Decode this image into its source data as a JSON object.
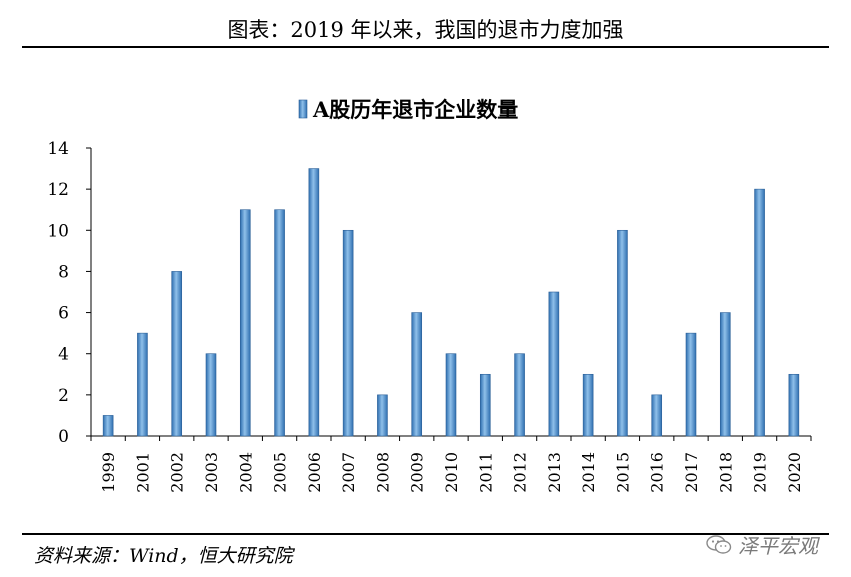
{
  "figure": {
    "title": "图表：2019 年以来，我国的退市力度加强",
    "source": "资料来源：Wind，恒大研究院",
    "watermark": "泽平宏观",
    "watermark_icon": "wechat-icon"
  },
  "chart_data": {
    "type": "bar",
    "title": "",
    "series": [
      {
        "name": "A股历年退市企业数量",
        "color": "#5b9bd5",
        "values": [
          1,
          5,
          8,
          4,
          11,
          11,
          13,
          10,
          2,
          6,
          4,
          3,
          4,
          7,
          3,
          10,
          2,
          5,
          6,
          12,
          3
        ]
      }
    ],
    "categories": [
      "1999",
      "2001",
      "2002",
      "2003",
      "2004",
      "2005",
      "2006",
      "2007",
      "2008",
      "2009",
      "2010",
      "2011",
      "2012",
      "2013",
      "2014",
      "2015",
      "2016",
      "2017",
      "2018",
      "2019",
      "2020"
    ],
    "xlabel": "",
    "ylabel": "",
    "ylim": [
      0,
      14
    ],
    "yticks": [
      0,
      2,
      4,
      6,
      8,
      10,
      12,
      14
    ],
    "grid": false,
    "legend_position": "top-center"
  }
}
